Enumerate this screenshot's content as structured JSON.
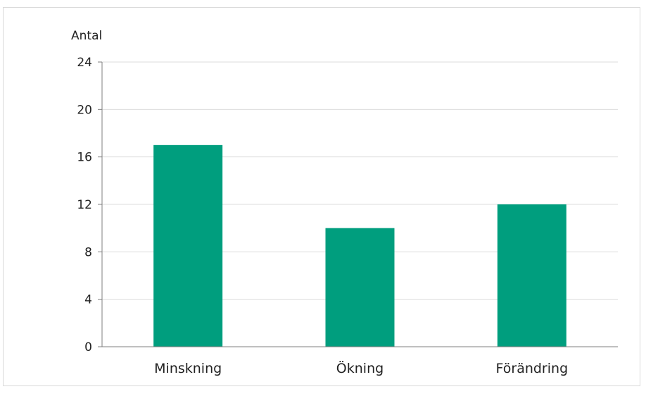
{
  "chart_data": {
    "type": "bar",
    "title": "",
    "xlabel": "",
    "ylabel": "Antal",
    "categories": [
      "Minskning",
      "Ökning",
      "Förändring"
    ],
    "values": [
      17,
      10,
      12
    ],
    "ylim": [
      0,
      24
    ],
    "yticks": [
      0,
      4,
      8,
      12,
      16,
      20,
      24
    ],
    "grid": true,
    "legend": "none",
    "colors": {
      "bar": "#009e7e",
      "grid": "#dcdcdc",
      "axis": "#7f7f7f"
    }
  }
}
